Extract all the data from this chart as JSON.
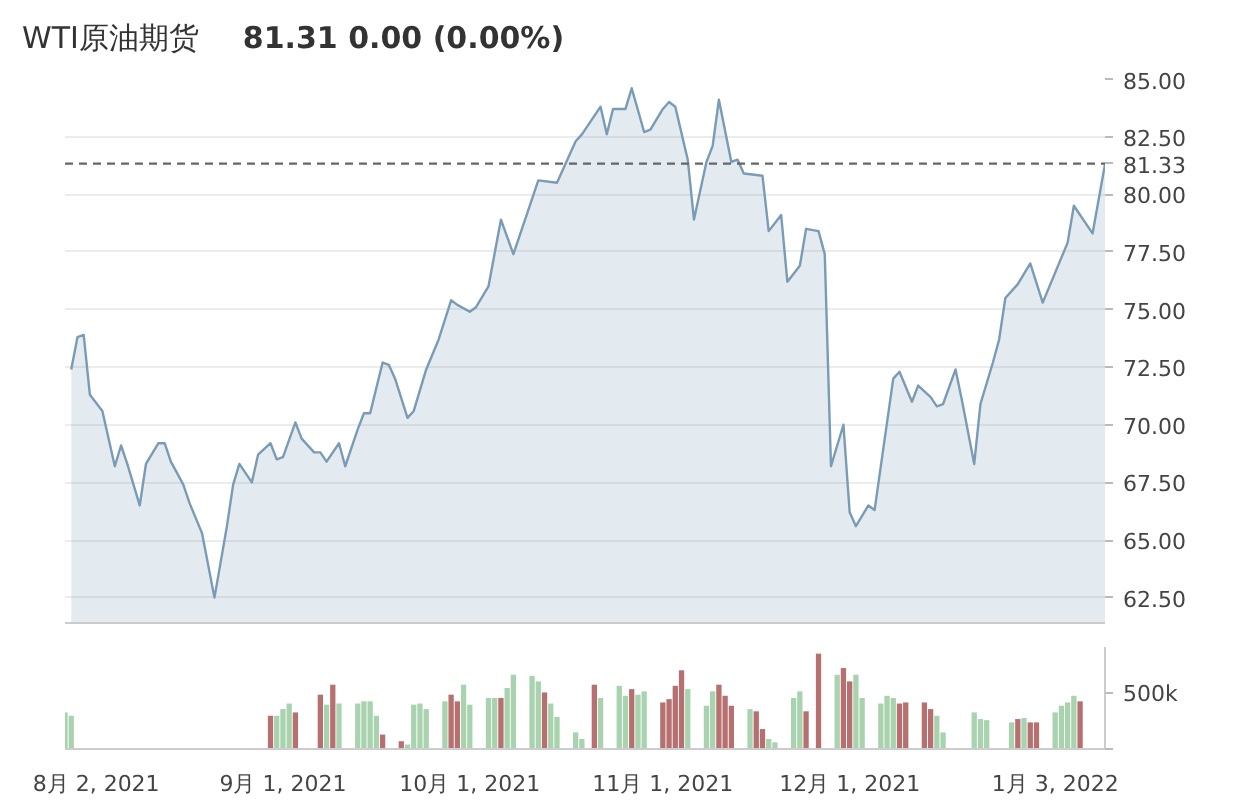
{
  "chart_data": [
    {
      "type": "area",
      "title": "WTI原油期货",
      "subtitle": "81.31  0.00  (0.00%)",
      "color": "#7a9bb5",
      "x": [
        "2021-07-29",
        "2021-07-30",
        "2021-07-31",
        "2021-08-01",
        "2021-08-03",
        "2021-08-05",
        "2021-08-06",
        "2021-08-07",
        "2021-08-09",
        "2021-08-10",
        "2021-08-12",
        "2021-08-13",
        "2021-08-14",
        "2021-08-16",
        "2021-08-17",
        "2021-08-19",
        "2021-08-21",
        "2021-08-23",
        "2021-08-24",
        "2021-08-25",
        "2021-08-27",
        "2021-08-28",
        "2021-08-30",
        "2021-08-31",
        "2021-09-01",
        "2021-09-03",
        "2021-09-04",
        "2021-09-06",
        "2021-09-07",
        "2021-09-08",
        "2021-09-10",
        "2021-09-11",
        "2021-09-13",
        "2021-09-14",
        "2021-09-15",
        "2021-09-17",
        "2021-09-18",
        "2021-09-19",
        "2021-09-21",
        "2021-09-22",
        "2021-09-24",
        "2021-09-26",
        "2021-09-28",
        "2021-09-29",
        "2021-10-01",
        "2021-10-02",
        "2021-10-04",
        "2021-10-06",
        "2021-10-08",
        "2021-10-10",
        "2021-10-12",
        "2021-10-15",
        "2021-10-18",
        "2021-10-19",
        "2021-10-22",
        "2021-10-23",
        "2021-10-24",
        "2021-10-26",
        "2021-10-27",
        "2021-10-29",
        "2021-10-30",
        "2021-11-01",
        "2021-11-02",
        "2021-11-03",
        "2021-11-05",
        "2021-11-06",
        "2021-11-08",
        "2021-11-09",
        "2021-11-10",
        "2021-11-12",
        "2021-11-13",
        "2021-11-14",
        "2021-11-17",
        "2021-11-18",
        "2021-11-20",
        "2021-11-21",
        "2021-11-23",
        "2021-11-24",
        "2021-11-26",
        "2021-11-27",
        "2021-11-28",
        "2021-11-30",
        "2021-12-01",
        "2021-12-02",
        "2021-12-04",
        "2021-12-05",
        "2021-12-08",
        "2021-12-09",
        "2021-12-11",
        "2021-12-12",
        "2021-12-14",
        "2021-12-15",
        "2021-12-16",
        "2021-12-18",
        "2021-12-19",
        "2021-12-21",
        "2021-12-22",
        "2021-12-24",
        "2021-12-25",
        "2021-12-26",
        "2021-12-28",
        "2021-12-30",
        "2022-01-01",
        "2022-01-05",
        "2022-01-06",
        "2022-01-09",
        "2022-01-11"
      ],
      "values": [
        72.4,
        73.8,
        73.9,
        71.3,
        70.6,
        68.2,
        69.1,
        68.3,
        66.5,
        68.3,
        69.2,
        69.2,
        68.4,
        67.4,
        66.6,
        65.3,
        62.5,
        65.6,
        67.4,
        68.3,
        67.5,
        68.7,
        69.2,
        68.5,
        68.6,
        70.1,
        69.4,
        68.8,
        68.8,
        68.4,
        69.2,
        68.2,
        69.8,
        70.5,
        70.5,
        72.7,
        72.6,
        72.0,
        70.3,
        70.6,
        72.4,
        73.7,
        75.4,
        75.2,
        74.9,
        75.1,
        76.0,
        78.9,
        77.4,
        79.0,
        80.6,
        80.5,
        82.3,
        82.6,
        83.8,
        82.6,
        83.7,
        83.7,
        84.6,
        82.7,
        82.8,
        83.7,
        84.0,
        83.8,
        81.5,
        78.9,
        81.4,
        82.1,
        84.1,
        81.4,
        81.5,
        80.9,
        80.8,
        78.4,
        79.1,
        76.2,
        76.9,
        78.5,
        78.4,
        77.4,
        68.2,
        70.0,
        66.2,
        65.6,
        66.5,
        66.3,
        72.0,
        72.3,
        71.0,
        71.7,
        71.2,
        70.8,
        70.9,
        72.4,
        71.1,
        68.3,
        70.9,
        72.7,
        73.7,
        75.5,
        76.1,
        77.0,
        75.3,
        77.9,
        79.5,
        78.3,
        81.3
      ],
      "xlim": [
        "2021-07-28",
        "2022-01-11"
      ],
      "xticks": [
        "2021-08-02",
        "2021-09-01",
        "2021-10-01",
        "2021-11-01",
        "2021-12-01",
        "2022-01-03"
      ],
      "ylim": [
        61.4,
        85
      ],
      "yticks": [
        {
          "value": 62.5,
          "label": "62.50"
        },
        {
          "value": 65,
          "label": "65.00"
        },
        {
          "value": 67.5,
          "label": "67.50"
        },
        {
          "value": 70,
          "label": "70.00"
        },
        {
          "value": 72.5,
          "label": "72.50"
        },
        {
          "value": 75,
          "label": "75.00"
        },
        {
          "value": 77.5,
          "label": "77.50"
        },
        {
          "value": 80,
          "label": "80.00"
        },
        {
          "value": 82.5,
          "label": "82.50"
        },
        {
          "value": 85,
          "label": "85.00"
        }
      ],
      "grid": true,
      "tick_labels": "y",
      "ref_lines": [
        {
          "axis": "y",
          "value": 81.33,
          "label": "81.33",
          "color": "#666666",
          "line_style": "dashed"
        }
      ]
    },
    {
      "type": "bar",
      "x": [
        "2021-07-28",
        "2021-07-29",
        "2021-08-30",
        "2021-08-31",
        "2021-09-01",
        "2021-09-02",
        "2021-09-03",
        "2021-09-07",
        "2021-09-08",
        "2021-09-09",
        "2021-09-10",
        "2021-09-13",
        "2021-09-14",
        "2021-09-15",
        "2021-09-16",
        "2021-09-17",
        "2021-09-20",
        "2021-09-21",
        "2021-09-22",
        "2021-09-23",
        "2021-09-24",
        "2021-09-27",
        "2021-09-28",
        "2021-09-29",
        "2021-09-30",
        "2021-10-01",
        "2021-10-04",
        "2021-10-05",
        "2021-10-06",
        "2021-10-07",
        "2021-10-08",
        "2021-10-11",
        "2021-10-12",
        "2021-10-13",
        "2021-10-14",
        "2021-10-15",
        "2021-10-18",
        "2021-10-19",
        "2021-10-21",
        "2021-10-22",
        "2021-10-25",
        "2021-10-26",
        "2021-10-27",
        "2021-10-28",
        "2021-10-29",
        "2021-11-01",
        "2021-11-02",
        "2021-11-03",
        "2021-11-04",
        "2021-11-05",
        "2021-11-08",
        "2021-11-09",
        "2021-11-10",
        "2021-11-11",
        "2021-11-12",
        "2021-11-15",
        "2021-11-16",
        "2021-11-17",
        "2021-11-18",
        "2021-11-19",
        "2021-11-22",
        "2021-11-23",
        "2021-11-24",
        "2021-11-26",
        "2021-11-29",
        "2021-11-30",
        "2021-12-01",
        "2021-12-02",
        "2021-12-03",
        "2021-12-06",
        "2021-12-07",
        "2021-12-08",
        "2021-12-09",
        "2021-12-10",
        "2021-12-13",
        "2021-12-14",
        "2021-12-15",
        "2021-12-16",
        "2021-12-21",
        "2021-12-22",
        "2021-12-23",
        "2021-12-27",
        "2021-12-28",
        "2021-12-29",
        "2021-12-30",
        "2021-12-31",
        "2022-01-03",
        "2022-01-04",
        "2022-01-05",
        "2022-01-06",
        "2022-01-07"
      ],
      "values": [
        330000,
        300000,
        300000,
        300000,
        360000,
        410000,
        330000,
        490000,
        400000,
        580000,
        410000,
        410000,
        430000,
        430000,
        300000,
        130000,
        70000,
        40000,
        400000,
        410000,
        360000,
        430000,
        490000,
        430000,
        580000,
        400000,
        460000,
        460000,
        460000,
        550000,
        670000,
        660000,
        610000,
        510000,
        410000,
        290000,
        150000,
        90000,
        580000,
        460000,
        570000,
        480000,
        540000,
        490000,
        520000,
        420000,
        450000,
        570000,
        710000,
        540000,
        390000,
        520000,
        580000,
        480000,
        390000,
        360000,
        340000,
        180000,
        90000,
        60000,
        460000,
        520000,
        340000,
        860000,
        670000,
        730000,
        610000,
        670000,
        460000,
        410000,
        480000,
        460000,
        410000,
        420000,
        420000,
        360000,
        300000,
        150000,
        330000,
        270000,
        260000,
        240000,
        270000,
        280000,
        240000,
        240000,
        330000,
        390000,
        420000,
        480000,
        430000
      ],
      "colors": [
        "#a9d3ae",
        "#a9d3ae",
        "#b5706f",
        "#a9d3ae",
        "#a9d3ae",
        "#a9d3ae",
        "#b5706f",
        "#b5706f",
        "#a9d3ae",
        "#b5706f",
        "#a9d3ae",
        "#a9d3ae",
        "#a9d3ae",
        "#a9d3ae",
        "#a9d3ae",
        "#b5706f",
        "#b5706f",
        "#a9d3ae",
        "#a9d3ae",
        "#a9d3ae",
        "#a9d3ae",
        "#a9d3ae",
        "#b5706f",
        "#b5706f",
        "#a9d3ae",
        "#a9d3ae",
        "#a9d3ae",
        "#a9d3ae",
        "#b5706f",
        "#a9d3ae",
        "#a9d3ae",
        "#a9d3ae",
        "#a9d3ae",
        "#b5706f",
        "#a9d3ae",
        "#a9d3ae",
        "#a9d3ae",
        "#a9d3ae",
        "#b5706f",
        "#a9d3ae",
        "#a9d3ae",
        "#a9d3ae",
        "#b5706f",
        "#a9d3ae",
        "#a9d3ae",
        "#b5706f",
        "#b5706f",
        "#b5706f",
        "#b5706f",
        "#a9d3ae",
        "#a9d3ae",
        "#a9d3ae",
        "#b5706f",
        "#b5706f",
        "#b5706f",
        "#a9d3ae",
        "#b5706f",
        "#b5706f",
        "#a9d3ae",
        "#a9d3ae",
        "#a9d3ae",
        "#a9d3ae",
        "#b5706f",
        "#b5706f",
        "#a9d3ae",
        "#b5706f",
        "#b5706f",
        "#a9d3ae",
        "#a9d3ae",
        "#a9d3ae",
        "#a9d3ae",
        "#a9d3ae",
        "#b5706f",
        "#b5706f",
        "#b5706f",
        "#b5706f",
        "#a9d3ae",
        "#a9d3ae",
        "#a9d3ae",
        "#a9d3ae",
        "#a9d3ae",
        "#a9d3ae",
        "#b5706f",
        "#a9d3ae",
        "#b5706f",
        "#b5706f",
        "#a9d3ae",
        "#a9d3ae",
        "#a9d3ae",
        "#a9d3ae",
        "#b5706f"
      ],
      "xlim": [
        "2021-07-28",
        "2022-01-11"
      ],
      "xticks": [
        {
          "value": "2021-08-02",
          "label": "8月 2, 2021"
        },
        {
          "value": "2021-09-01",
          "label": "9月 1, 2021"
        },
        {
          "value": "2021-10-01",
          "label": "10月 1, 2021"
        },
        {
          "value": "2021-11-01",
          "label": "11月 1, 2021"
        },
        {
          "value": "2021-12-01",
          "label": "12月 1, 2021"
        },
        {
          "value": "2022-01-03",
          "label": "1月 3, 2022"
        }
      ],
      "ylim": [
        0,
        920000
      ],
      "yticks": [
        {
          "value": 0,
          "label": null
        },
        {
          "value": 500000,
          "label": "500k"
        }
      ]
    }
  ]
}
